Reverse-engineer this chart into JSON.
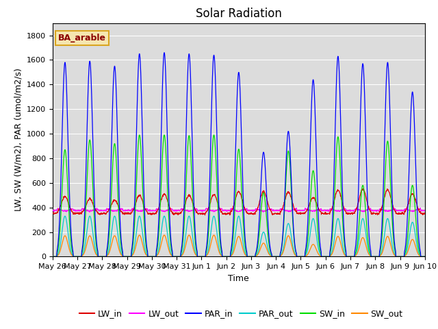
{
  "title": "Solar Radiation",
  "xlabel": "Time",
  "ylabel": "LW, SW (W/m2), PAR (umol/m2/s)",
  "annotation": "BA_arable",
  "ylim": [
    0,
    1900
  ],
  "yticks": [
    0,
    200,
    400,
    600,
    800,
    1000,
    1200,
    1400,
    1600,
    1800
  ],
  "background_color": "#dcdcdc",
  "colors": {
    "LW_in": "#dd0000",
    "LW_out": "#ff00ff",
    "PAR_in": "#0000ff",
    "PAR_out": "#00cccc",
    "SW_in": "#00dd00",
    "SW_out": "#ff8800"
  },
  "legend_labels": [
    "LW_in",
    "LW_out",
    "PAR_in",
    "PAR_out",
    "SW_in",
    "SW_out"
  ],
  "n_days": 15,
  "day_labels": [
    "May 26",
    "May 27",
    "May 28",
    "May 29",
    "May 30",
    "May 31",
    "Jun 1",
    "Jun 2",
    "Jun 3",
    "Jun 4",
    "Jun 5",
    "Jun 6",
    "Jun 7",
    "Jun 8",
    "Jun 9",
    "Jun 10"
  ],
  "par_in_peaks": [
    1580,
    1590,
    1550,
    1650,
    1660,
    1650,
    1640,
    1500,
    850,
    1020,
    1440,
    1630,
    1570,
    1580,
    1340
  ],
  "par_out_peaks": [
    330,
    330,
    330,
    330,
    330,
    330,
    330,
    330,
    200,
    270,
    310,
    310,
    310,
    310,
    280
  ],
  "sw_in_peaks": [
    870,
    950,
    920,
    990,
    990,
    985,
    990,
    875,
    520,
    860,
    700,
    975,
    580,
    940,
    580
  ],
  "sw_out_peaks": [
    170,
    170,
    170,
    175,
    175,
    175,
    175,
    165,
    110,
    170,
    100,
    165,
    155,
    165,
    140
  ],
  "lw_in_day_peaks": [
    490,
    470,
    460,
    500,
    510,
    500,
    505,
    530,
    530,
    525,
    480,
    540,
    550,
    545,
    510
  ],
  "lw_in_night": 350,
  "lw_out_day": 390,
  "lw_out_night": 375,
  "steps_per_day": 96,
  "title_fontsize": 12,
  "label_fontsize": 9,
  "tick_fontsize": 8,
  "legend_fontsize": 9,
  "figsize": [
    6.4,
    4.8
  ],
  "dpi": 100
}
